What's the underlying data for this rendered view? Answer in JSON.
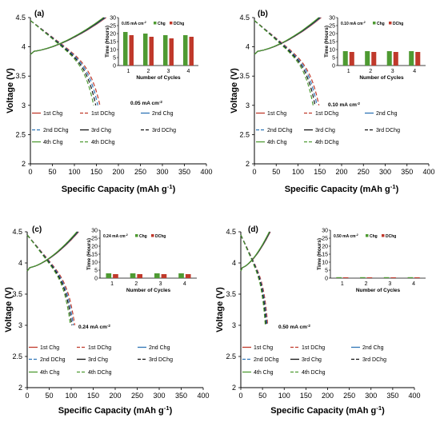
{
  "chart_data": [
    {
      "type": "line",
      "panel_label": "(a)",
      "xlabel": "Specific Capacity (mAh g-1)",
      "ylabel": "Voltage (V)",
      "xlim": [
        0,
        400
      ],
      "ylim": [
        2,
        4.5
      ],
      "xticks": [
        "0",
        "50",
        "100",
        "150",
        "200",
        "250",
        "300",
        "350",
        "400"
      ],
      "yticks": [
        "2",
        "2.5",
        "3",
        "3.5",
        "4",
        "4.5"
      ],
      "annotation": "0.05 mA cm-2",
      "charge_end": 172,
      "discharge_end": 158,
      "legend": [
        "1st Chg",
        "1st DChg",
        "2nd Chg",
        "2nd DChg",
        "3rd Chg",
        "3rd DChg",
        "4th Chg",
        "4th DChg"
      ],
      "inset": {
        "type": "bar",
        "legend_title": "0.05 mA cm-2",
        "series": [
          {
            "name": "Chg",
            "values": [
              21,
              20,
              19,
              19
            ]
          },
          {
            "name": "DChg",
            "values": [
              19,
              18,
              17,
              18
            ]
          }
        ],
        "categories": [
          "1",
          "2",
          "3",
          "4"
        ],
        "xlabel": "Number of Cycles",
        "ylabel": "Time (Hours)",
        "ylim": [
          0,
          30
        ],
        "yticks": [
          "0",
          "5",
          "10",
          "15",
          "20",
          "25",
          "30"
        ]
      }
    },
    {
      "type": "line",
      "panel_label": "(b)",
      "xlabel": "Specific Capacity (mAh g-1)",
      "ylabel": "Voltage (V)",
      "xlim": [
        0,
        400
      ],
      "ylim": [
        2,
        4.5
      ],
      "xticks": [
        "0",
        "50",
        "100",
        "150",
        "200",
        "250",
        "300",
        "350",
        "400"
      ],
      "yticks": [
        "2",
        "2.5",
        "3",
        "3.5",
        "4",
        "4.5"
      ],
      "annotation": "0.10 mA cm-2",
      "charge_end": 153,
      "discharge_end": 148,
      "legend": [
        "1st Chg",
        "1st DChg",
        "2nd Chg",
        "2nd DChg",
        "3rd Chg",
        "3rd DChg",
        "4th Chg",
        "4th DChg"
      ],
      "inset": {
        "type": "bar",
        "legend_title": "0.10 mA cm-2",
        "series": [
          {
            "name": "Chg",
            "values": [
              9,
              9,
              9,
              9
            ]
          },
          {
            "name": "DChg",
            "values": [
              8.5,
              8.5,
              8.5,
              8.5
            ]
          }
        ],
        "categories": [
          "1",
          "2",
          "3",
          "4"
        ],
        "xlabel": "Number of Cycles",
        "ylabel": "Time (Hours)",
        "ylim": [
          0,
          30
        ],
        "yticks": [
          "0",
          "5",
          "10",
          "15",
          "20",
          "25",
          "30"
        ]
      }
    },
    {
      "type": "line",
      "panel_label": "(c)",
      "xlabel": "Specific Capacity (mAh g-1)",
      "ylabel": "Voltage (V)",
      "xlim": [
        0,
        400
      ],
      "ylim": [
        2,
        4.5
      ],
      "xticks": [
        "0",
        "50",
        "100",
        "150",
        "200",
        "250",
        "300",
        "350",
        "400"
      ],
      "yticks": [
        "2",
        "2.5",
        "3",
        "3.5",
        "4",
        "4.5"
      ],
      "annotation": "0.24 mA cm-2",
      "charge_end": 117,
      "discharge_end": 108,
      "legend": [
        "1st Chg",
        "1st DChg",
        "2nd Chg",
        "2nd DChg",
        "3rd Chg",
        "3rd DChg",
        "4th Chg",
        "4th DChg"
      ],
      "inset": {
        "type": "bar",
        "legend_title": "0.24 mA cm-2",
        "series": [
          {
            "name": "Chg",
            "values": [
              3,
              3,
              3,
              3
            ]
          },
          {
            "name": "DChg",
            "values": [
              2.5,
              2.5,
              2.5,
              2.5
            ]
          }
        ],
        "categories": [
          "1",
          "2",
          "3",
          "4"
        ],
        "xlabel": "Number of Cycles",
        "ylabel": "Time (Hours)",
        "ylim": [
          0,
          30
        ],
        "yticks": [
          "0",
          "5",
          "10",
          "15",
          "20",
          "25",
          "30"
        ]
      }
    },
    {
      "type": "line",
      "panel_label": "(d)",
      "xlabel": "Specific Capacity (mAh g-1)",
      "ylabel": "Voltage (V)",
      "xlim": [
        0,
        400
      ],
      "ylim": [
        2,
        4.5
      ],
      "xticks": [
        "0",
        "50",
        "100",
        "150",
        "200",
        "250",
        "300",
        "350",
        "400"
      ],
      "yticks": [
        "2",
        "2.5",
        "3",
        "3.5",
        "4",
        "4.5"
      ],
      "annotation": "0.50 mA cm-2",
      "charge_end": 68,
      "discharge_end": 62,
      "legend": [
        "1st Chg",
        "1st DChg",
        "2nd Chg",
        "2nd DChg",
        "3rd Chg",
        "3rd DChg",
        "4th Chg",
        "4th DChg"
      ],
      "inset": {
        "type": "bar",
        "legend_title": "0.50 mA cm-2",
        "series": [
          {
            "name": "Chg",
            "values": [
              0.6,
              0.6,
              0.6,
              0.6
            ]
          },
          {
            "name": "DChg",
            "values": [
              0.5,
              0.5,
              0.5,
              0.5
            ]
          }
        ],
        "categories": [
          "1",
          "2",
          "3",
          "4"
        ],
        "xlabel": "Number of Cycles",
        "ylabel": "Time (Hours)",
        "ylim": [
          0,
          30
        ],
        "yticks": [
          "0",
          "5",
          "10",
          "15",
          "20",
          "25",
          "30"
        ]
      }
    }
  ],
  "colors": {
    "cycle1": "#c0392b",
    "cycle2": "#2e75b6",
    "cycle3": "#111111",
    "cycle4": "#4e9a32",
    "inset_chg": "#4e9a32",
    "inset_dchg": "#c0392b"
  }
}
